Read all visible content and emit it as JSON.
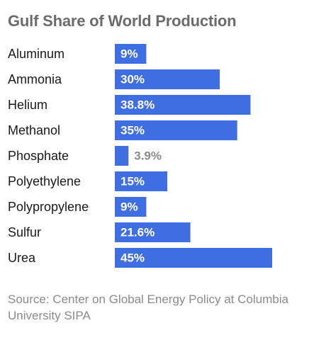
{
  "chart_data": {
    "type": "bar",
    "orientation": "horizontal",
    "title": "Gulf Share of World Production",
    "categories": [
      "Aluminum",
      "Ammonia",
      "Helium",
      "Methanol",
      "Phosphate",
      "Polyethylene",
      "Polypropylene",
      "Sulfur",
      "Urea"
    ],
    "values": [
      9,
      30,
      38.8,
      35,
      3.9,
      15,
      9,
      21.6,
      45
    ],
    "value_labels": [
      "9%",
      "30%",
      "38.8%",
      "35%",
      "3.9%",
      "15%",
      "9%",
      "21.6%",
      "45%"
    ],
    "xlim": [
      0,
      45
    ],
    "xlabel": "",
    "ylabel": "",
    "grid": false,
    "legend": "none",
    "source": "Source: Center on Global Energy Policy at Columbia University SIPA"
  },
  "colors": {
    "bar": "#3f6ee2",
    "title": "#6b6b6b",
    "label_inside": "#ffffff",
    "label_outside": "#8a8a8a",
    "category_text": "#1a1a1a",
    "source_text": "#8a8a8a"
  }
}
